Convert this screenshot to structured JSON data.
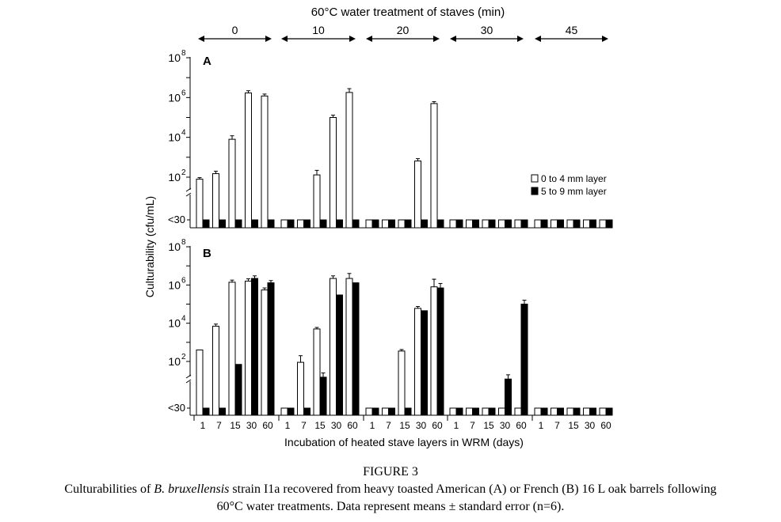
{
  "figure_label": "FIGURE 3",
  "caption": {
    "part1": "Culturabilities of ",
    "species": "B. bruxellensis",
    "part2": " strain I1a recovered from heavy toasted American (A) or French (B) 16 L oak barrels following",
    "line2": "60°C water treatments. Data represent means ± standard error (n=6)."
  },
  "chart_data": {
    "type": "bar",
    "title": "60°C water treatment of staves (min)",
    "xlabel": "Incubation of heated stave layers in WRM (days)",
    "ylabel": "Culturability (cfu/mL)",
    "y_scale": "log10",
    "ylim": [
      1,
      100000000
    ],
    "below_detection_label": "<30",
    "y_ticks": [
      {
        "base": "10",
        "exp": "2",
        "value": 100
      },
      {
        "base": "10",
        "exp": "4",
        "value": 10000
      },
      {
        "base": "10",
        "exp": "6",
        "value": 1000000
      },
      {
        "base": "10",
        "exp": "8",
        "value": 100000000
      }
    ],
    "treatments": [
      "0",
      "10",
      "20",
      "30",
      "45"
    ],
    "days": [
      "1",
      "7",
      "15",
      "30",
      "60"
    ],
    "legend": {
      "placement": "right",
      "entries": [
        {
          "label": "0 to 4 mm layer",
          "color": "#ffffff"
        },
        {
          "label": "5 to 9 mm layer",
          "color": "#000000"
        }
      ]
    },
    "panels": [
      {
        "label": "A",
        "series": [
          {
            "name": "0 to 4 mm layer",
            "values": [
              [
                80,
                150,
                8000,
                1700000,
                1200000
              ],
              [
                null,
                null,
                130,
                100000,
                1800000
              ],
              [
                null,
                null,
                null,
                650,
                500000
              ],
              [
                null,
                null,
                null,
                null,
                null
              ],
              [
                null,
                null,
                null,
                null,
                null
              ]
            ]
          },
          {
            "name": "5 to 9 mm layer",
            "values": [
              [
                null,
                null,
                null,
                null,
                null
              ],
              [
                null,
                null,
                null,
                null,
                null
              ],
              [
                null,
                null,
                null,
                null,
                null
              ],
              [
                null,
                null,
                null,
                null,
                null
              ],
              [
                null,
                null,
                null,
                null,
                null
              ]
            ]
          }
        ],
        "errors": [
          {
            "series": 0,
            "treatment": 0,
            "day": 0,
            "upper": 95
          },
          {
            "series": 0,
            "treatment": 0,
            "day": 1,
            "upper": 200
          },
          {
            "series": 0,
            "treatment": 0,
            "day": 2,
            "upper": 12000
          },
          {
            "series": 0,
            "treatment": 0,
            "day": 3,
            "upper": 2200000
          },
          {
            "series": 0,
            "treatment": 0,
            "day": 4,
            "upper": 1500000
          },
          {
            "series": 0,
            "treatment": 1,
            "day": 2,
            "upper": 220
          },
          {
            "series": 0,
            "treatment": 1,
            "day": 3,
            "upper": 130000
          },
          {
            "series": 0,
            "treatment": 1,
            "day": 4,
            "upper": 2800000
          },
          {
            "series": 0,
            "treatment": 2,
            "day": 3,
            "upper": 850
          },
          {
            "series": 0,
            "treatment": 2,
            "day": 4,
            "upper": 620000
          }
        ]
      },
      {
        "label": "B",
        "series": [
          {
            "name": "0 to 4 mm layer",
            "values": [
              [
                400,
                7000,
                1400000,
                1600000,
                550000
              ],
              [
                null,
                90,
                5000,
                2200000,
                2200000
              ],
              [
                null,
                null,
                350,
                60000,
                800000
              ],
              [
                null,
                null,
                null,
                null,
                null
              ],
              [
                null,
                null,
                null,
                null,
                null
              ]
            ]
          },
          {
            "name": "5 to 9 mm layer",
            "values": [
              [
                null,
                null,
                70,
                2200000,
                1300000
              ],
              [
                null,
                null,
                15,
                300000,
                1300000
              ],
              [
                null,
                null,
                null,
                45000,
                700000
              ],
              [
                null,
                null,
                null,
                12,
                100000
              ],
              [
                null,
                null,
                null,
                null,
                null
              ]
            ]
          }
        ],
        "errors": [
          {
            "series": 0,
            "treatment": 0,
            "day": 1,
            "upper": 9000
          },
          {
            "series": 0,
            "treatment": 0,
            "day": 2,
            "upper": 1800000
          },
          {
            "series": 0,
            "treatment": 0,
            "day": 3,
            "upper": 2100000
          },
          {
            "series": 0,
            "treatment": 0,
            "day": 4,
            "upper": 700000
          },
          {
            "series": 1,
            "treatment": 0,
            "day": 3,
            "upper": 3000000
          },
          {
            "series": 1,
            "treatment": 0,
            "day": 4,
            "upper": 1700000
          },
          {
            "series": 0,
            "treatment": 1,
            "day": 1,
            "upper": 200
          },
          {
            "series": 0,
            "treatment": 1,
            "day": 2,
            "upper": 6000
          },
          {
            "series": 0,
            "treatment": 1,
            "day": 3,
            "upper": 3000000
          },
          {
            "series": 0,
            "treatment": 1,
            "day": 4,
            "upper": 4000000
          },
          {
            "series": 1,
            "treatment": 1,
            "day": 2,
            "upper": 25
          },
          {
            "series": 0,
            "treatment": 2,
            "day": 2,
            "upper": 420
          },
          {
            "series": 0,
            "treatment": 2,
            "day": 3,
            "upper": 75000
          },
          {
            "series": 0,
            "treatment": 2,
            "day": 4,
            "upper": 2000000
          },
          {
            "series": 0,
            "treatment": 2,
            "day": 4,
            "upper": 2000000
          },
          {
            "series": 1,
            "treatment": 2,
            "day": 4,
            "upper": 1200000
          },
          {
            "series": 1,
            "treatment": 3,
            "day": 3,
            "upper": 20
          },
          {
            "series": 1,
            "treatment": 3,
            "day": 4,
            "upper": 160000
          }
        ]
      }
    ]
  }
}
